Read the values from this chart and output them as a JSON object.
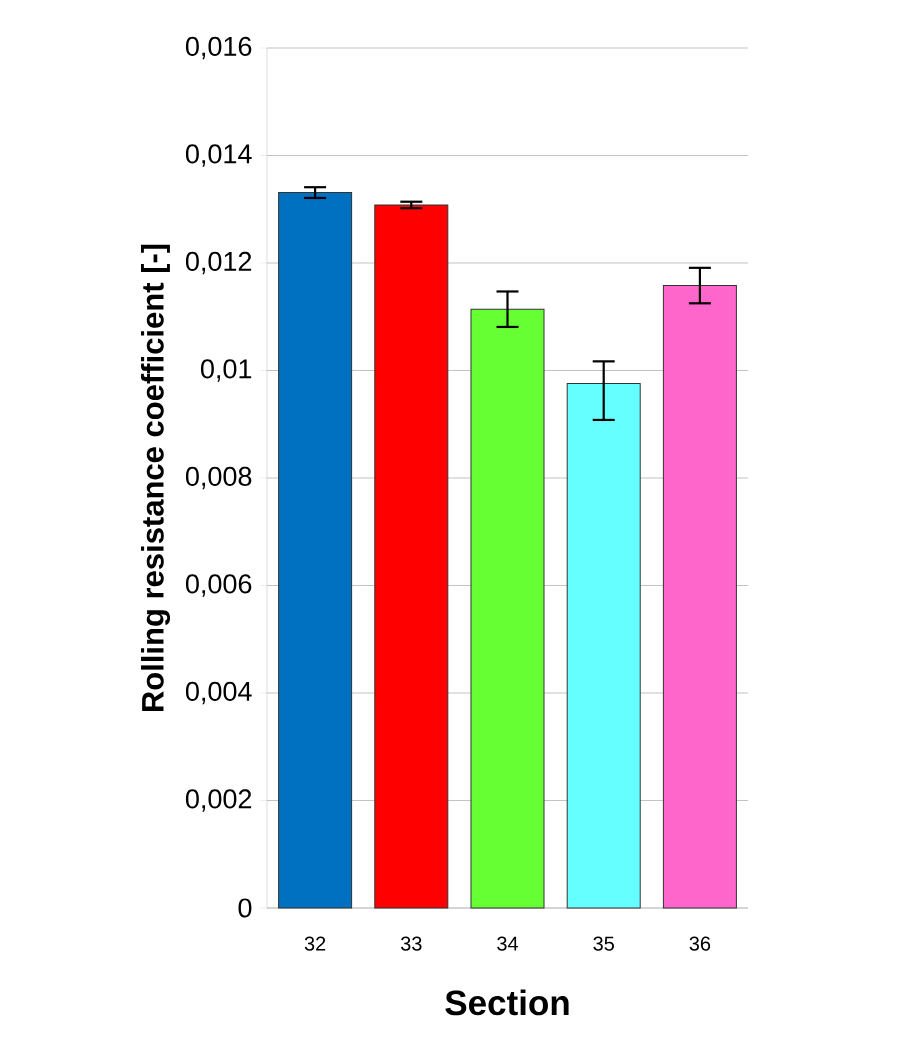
{
  "chart_data": {
    "type": "bar",
    "xlabel": "Section",
    "ylabel": "Rolling resistance coefficient [-]",
    "categories": [
      "32",
      "33",
      "34",
      "35",
      "36"
    ],
    "values": [
      0.01331,
      0.01308,
      0.01114,
      0.00976,
      0.01158
    ],
    "errors": [
      0.0001,
      6e-05,
      0.00033,
      [
        0.00908,
        0.01017
      ],
      0.00033
    ],
    "colors": [
      "#0070c0",
      "#ff0000",
      "#66ff33",
      "#66ffff",
      "#ff66cc"
    ],
    "ylim": [
      0,
      0.016
    ],
    "yticks": [
      {
        "value": 0,
        "label": "0"
      },
      {
        "value": 0.002,
        "label": "0,002"
      },
      {
        "value": 0.004,
        "label": "0,004"
      },
      {
        "value": 0.006,
        "label": "0,006"
      },
      {
        "value": 0.008,
        "label": "0,008"
      },
      {
        "value": 0.01,
        "label": "0,01"
      },
      {
        "value": 0.012,
        "label": "0,012"
      },
      {
        "value": 0.014,
        "label": "0,014"
      },
      {
        "value": 0.016,
        "label": "0,016"
      }
    ],
    "grid": "y"
  }
}
